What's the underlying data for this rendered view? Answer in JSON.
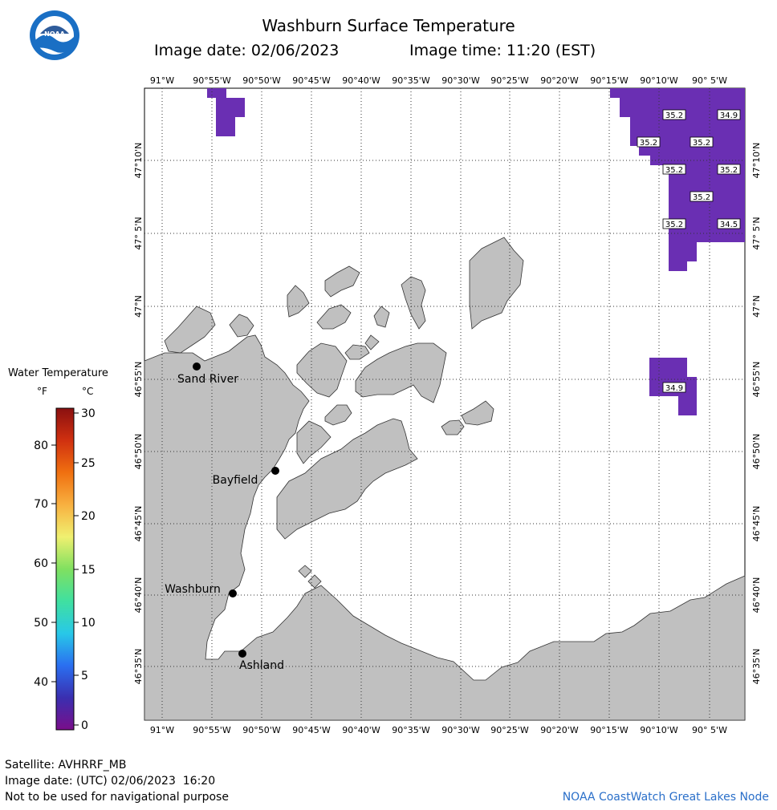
{
  "header": {
    "title": "Washburn Surface Temperature",
    "image_date": "Image date: 02/06/2023",
    "image_time": "Image time: 11:20 (EST)"
  },
  "logo": {
    "text": "NOAA",
    "icon": "noaa-logo"
  },
  "map": {
    "lon_labels": [
      "91°W",
      "90°55'W",
      "90°50'W",
      "90°45'W",
      "90°40'W",
      "90°35'W",
      "90°30'W",
      "90°25'W",
      "90°20'W",
      "90°15'W",
      "90°10'W",
      "90° 5'W"
    ],
    "lat_labels": [
      "47°10'N",
      "47° 5'N",
      "47°N",
      "46°55'N",
      "46°50'N",
      "46°45'N",
      "46°40'N",
      "46°35'N"
    ],
    "cities": [
      {
        "name": "Sand River"
      },
      {
        "name": "Bayfield"
      },
      {
        "name": "Washburn"
      },
      {
        "name": "Ashland"
      }
    ],
    "temperature_labels": [
      "35.2",
      "34.9",
      "35.2",
      "35.2",
      "35.2",
      "35.2",
      "35.2",
      "35.2",
      "34.5",
      "34.9"
    ],
    "colors": {
      "land": "#c0c0c0",
      "ice_water": "#6a2fb3",
      "grid": "#333333",
      "water": "#ffffff"
    }
  },
  "legend": {
    "title": "Water Temperature",
    "unit_f": "°F",
    "unit_c": "°C",
    "f_ticks": [
      "80",
      "70",
      "60",
      "50",
      "40"
    ],
    "c_ticks": [
      "30",
      "25",
      "20",
      "15",
      "10",
      "5",
      "0"
    ],
    "color_stops": [
      "#7a0e8a",
      "#3a2fb0",
      "#2a6ff0",
      "#28c8e8",
      "#40e0a0",
      "#80e060",
      "#f0f070",
      "#f8b040",
      "#f07010",
      "#d03010",
      "#8a1010"
    ]
  },
  "footer": {
    "satellite": "Satellite: AVHRRF_MB",
    "utc_date": "Image date: (UTC) 02/06/2023  16:20",
    "disclaimer": "Not to be used for navigational purpose",
    "credit": "NOAA CoastWatch Great Lakes Node"
  }
}
